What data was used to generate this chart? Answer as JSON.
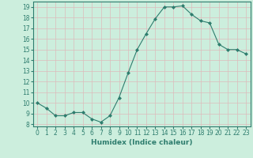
{
  "x": [
    0,
    1,
    2,
    3,
    4,
    5,
    6,
    7,
    8,
    9,
    10,
    11,
    12,
    13,
    14,
    15,
    16,
    17,
    18,
    19,
    20,
    21,
    22,
    23
  ],
  "y": [
    10.0,
    9.5,
    8.8,
    8.8,
    9.1,
    9.1,
    8.5,
    8.2,
    8.8,
    10.5,
    12.8,
    15.0,
    16.5,
    17.9,
    19.0,
    19.0,
    19.1,
    18.3,
    17.7,
    17.5,
    15.5,
    15.0,
    15.0,
    14.6
  ],
  "line_color": "#2e7d6e",
  "marker": "D",
  "marker_size": 2,
  "bg_color": "#cceedd",
  "grid_color": "#ddbbbb",
  "xlabel": "Humidex (Indice chaleur)",
  "ylim": [
    7.8,
    19.5
  ],
  "xlim": [
    -0.5,
    23.5
  ],
  "yticks": [
    8,
    9,
    10,
    11,
    12,
    13,
    14,
    15,
    16,
    17,
    18,
    19
  ],
  "xticks": [
    0,
    1,
    2,
    3,
    4,
    5,
    6,
    7,
    8,
    9,
    10,
    11,
    12,
    13,
    14,
    15,
    16,
    17,
    18,
    19,
    20,
    21,
    22,
    23
  ],
  "tick_color": "#2e7d6e",
  "label_fontsize": 6.5,
  "tick_fontsize": 5.5
}
